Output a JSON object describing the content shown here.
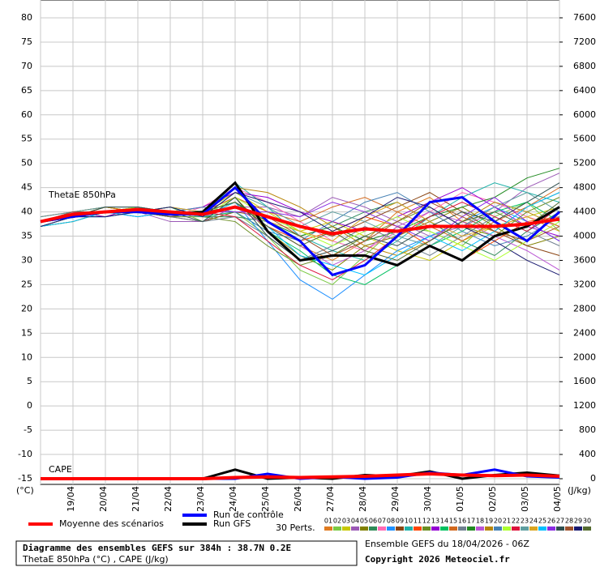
{
  "chart_data": {
    "type": "line",
    "annotations": [
      "ThetaE 850hPa",
      "CAPE"
    ],
    "y_unit": "(°C)",
    "y2_unit": "(J/kg)",
    "perts_label": "30 Perts.",
    "footer": {
      "title": "Diagramme des ensembles GEFS sur 384h : 38.7N 0.2E",
      "subtitle": "ThetaE 850hPa (°C) , CAPE (J/kg)",
      "run": "Ensemble GEFS du 18/04/2026 - 06Z",
      "copyright": "Copyright 2026 Meteociel.fr"
    },
    "categories": [
      null,
      "19/04",
      "20/04",
      "21/04",
      "22/04",
      "23/04",
      "24/04",
      "25/04",
      "26/04",
      "27/04",
      "28/04",
      "29/04",
      "30/04",
      "01/05",
      "02/05",
      "03/05",
      "04/05"
    ],
    "ylim": [
      -15,
      80
    ],
    "yticks": [
      -15,
      -10,
      -5,
      0,
      5,
      10,
      15,
      20,
      25,
      30,
      35,
      40,
      45,
      50,
      55,
      60,
      65,
      70,
      75,
      80
    ],
    "y2lim": [
      0,
      7600
    ],
    "y2ticks": [
      0,
      400,
      800,
      1200,
      1600,
      2000,
      2400,
      2800,
      3200,
      3600,
      4000,
      4400,
      4800,
      5200,
      5600,
      6000,
      6400,
      6800,
      7200,
      7600
    ],
    "grid": true,
    "series": [
      {
        "name": "Moyenne des scénarios",
        "color": "#ff0000",
        "values": [
          38,
          39.5,
          40,
          40.5,
          40,
          39.5,
          41,
          39,
          37,
          35.5,
          36.5,
          36,
          37,
          37,
          37,
          37.5,
          38.5
        ],
        "cape_values": [
          0,
          0,
          0,
          0,
          0,
          0,
          20,
          30,
          20,
          30,
          40,
          60,
          80,
          60,
          50,
          60,
          40
        ]
      },
      {
        "name": "Run de contrôle",
        "color": "#0000ff",
        "values": [
          38,
          39,
          40,
          40,
          39.5,
          39.5,
          45,
          38,
          34,
          27,
          29,
          35,
          42,
          43,
          38,
          34,
          40
        ],
        "cape_values": [
          0,
          0,
          0,
          0,
          0,
          0,
          0,
          80,
          0,
          30,
          0,
          20,
          100,
          60,
          150,
          40,
          20
        ]
      },
      {
        "name": "Run GFS",
        "color": "#000000",
        "values": [
          38,
          39,
          40,
          40,
          39.5,
          40,
          46,
          36,
          30,
          31,
          31,
          29,
          33,
          30,
          35,
          37,
          41
        ],
        "cape_values": [
          0,
          0,
          0,
          0,
          0,
          0,
          150,
          0,
          20,
          0,
          60,
          40,
          120,
          0,
          60,
          100,
          50
        ]
      },
      {
        "name": "01",
        "color": "#e07b20",
        "values": [
          38,
          39,
          40,
          41,
          40,
          39,
          42,
          37,
          33,
          30,
          34,
          40,
          43,
          38,
          36,
          41,
          44
        ]
      },
      {
        "name": "02",
        "color": "#7ac943",
        "values": [
          37,
          39,
          41,
          40,
          41,
          38,
          40,
          35,
          28,
          25,
          31,
          37,
          36,
          33,
          39,
          42,
          36
        ]
      },
      {
        "name": "03",
        "color": "#c8c800",
        "values": [
          38,
          40,
          39,
          41,
          39,
          40,
          44,
          40,
          36,
          38,
          35,
          32,
          30,
          34,
          37,
          39,
          41
        ]
      },
      {
        "name": "04",
        "color": "#9b59b6",
        "values": [
          38,
          39,
          40,
          40,
          38,
          38,
          41,
          41,
          39,
          43,
          41,
          38,
          35,
          37,
          40,
          45,
          48
        ]
      },
      {
        "name": "05",
        "color": "#808000",
        "values": [
          37,
          38,
          40,
          39,
          40,
          40,
          43,
          36,
          31,
          28,
          33,
          35,
          38,
          41,
          37,
          33,
          35
        ]
      },
      {
        "name": "06",
        "color": "#2e8b57",
        "values": [
          38,
          40,
          41,
          40,
          40,
          39,
          39,
          38,
          35,
          37,
          40,
          42,
          38,
          34,
          31,
          36,
          40
        ]
      },
      {
        "name": "07",
        "color": "#ff69b4",
        "values": [
          39,
          40,
          40,
          41,
          39,
          41,
          45,
          42,
          38,
          34,
          32,
          36,
          40,
          44,
          42,
          39,
          37
        ]
      },
      {
        "name": "08",
        "color": "#1e90ff",
        "values": [
          38,
          39,
          39,
          40,
          41,
          40,
          42,
          34,
          26,
          22,
          27,
          32,
          35,
          38,
          41,
          38,
          34
        ]
      },
      {
        "name": "09",
        "color": "#8b4513",
        "values": [
          37,
          39,
          40,
          40,
          39,
          38,
          40,
          39,
          37,
          35,
          38,
          41,
          44,
          40,
          36,
          33,
          31
        ]
      },
      {
        "name": "10",
        "color": "#20b2aa",
        "values": [
          38,
          40,
          40,
          41,
          40,
          39,
          46,
          41,
          35,
          32,
          30,
          34,
          39,
          43,
          46,
          44,
          42
        ]
      },
      {
        "name": "11",
        "color": "#ff4500",
        "values": [
          38,
          39,
          41,
          40,
          40,
          40,
          41,
          37,
          34,
          36,
          39,
          37,
          33,
          30,
          34,
          38,
          39
        ]
      },
      {
        "name": "12",
        "color": "#6b8e23",
        "values": [
          37,
          38,
          40,
          40,
          39,
          39,
          38,
          33,
          29,
          31,
          35,
          38,
          41,
          37,
          35,
          40,
          43
        ]
      },
      {
        "name": "13",
        "color": "#9400d3",
        "values": [
          38,
          40,
          39,
          41,
          40,
          41,
          44,
          43,
          40,
          38,
          36,
          39,
          42,
          45,
          41,
          37,
          35
        ]
      },
      {
        "name": "14",
        "color": "#00c060",
        "values": [
          38,
          39,
          40,
          40,
          41,
          39,
          40,
          36,
          32,
          27,
          25,
          29,
          33,
          36,
          40,
          42,
          38
        ]
      },
      {
        "name": "15",
        "color": "#d2691e",
        "values": [
          39,
          40,
          41,
          40,
          40,
          40,
          43,
          40,
          38,
          41,
          43,
          40,
          37,
          34,
          38,
          41,
          45
        ]
      },
      {
        "name": "16",
        "color": "#708090",
        "values": [
          38,
          39,
          40,
          41,
          39,
          38,
          39,
          35,
          30,
          33,
          37,
          34,
          31,
          35,
          39,
          36,
          33
        ]
      },
      {
        "name": "17",
        "color": "#228b22",
        "values": [
          37,
          39,
          40,
          40,
          40,
          40,
          42,
          38,
          35,
          37,
          34,
          36,
          39,
          41,
          43,
          47,
          49
        ]
      },
      {
        "name": "18",
        "color": "#ba55d3",
        "values": [
          38,
          40,
          40,
          39,
          40,
          39,
          41,
          37,
          33,
          29,
          32,
          37,
          40,
          38,
          35,
          32,
          28
        ]
      },
      {
        "name": "19",
        "color": "#b8860b",
        "values": [
          38,
          39,
          41,
          40,
          39,
          40,
          45,
          44,
          41,
          37,
          33,
          31,
          34,
          38,
          42,
          40,
          37
        ]
      },
      {
        "name": "20",
        "color": "#4682b4",
        "values": [
          37,
          39,
          39,
          40,
          40,
          41,
          40,
          36,
          34,
          38,
          42,
          44,
          40,
          36,
          33,
          35,
          39
        ]
      },
      {
        "name": "21",
        "color": "#adff2f",
        "values": [
          38,
          40,
          40,
          41,
          40,
          39,
          43,
          39,
          36,
          33,
          36,
          39,
          36,
          33,
          30,
          34,
          38
        ]
      },
      {
        "name": "22",
        "color": "#dc143c",
        "values": [
          38,
          39,
          40,
          40,
          39,
          40,
          39,
          34,
          29,
          26,
          30,
          35,
          39,
          42,
          39,
          36,
          41
        ]
      },
      {
        "name": "23",
        "color": "#5f9ea0",
        "values": [
          39,
          40,
          41,
          41,
          40,
          39,
          44,
          41,
          37,
          40,
          38,
          35,
          33,
          37,
          41,
          44,
          40
        ]
      },
      {
        "name": "24",
        "color": "#daa520",
        "values": [
          38,
          39,
          40,
          40,
          41,
          40,
          41,
          38,
          36,
          34,
          39,
          42,
          38,
          35,
          37,
          39,
          36
        ]
      },
      {
        "name": "25",
        "color": "#00bfff",
        "values": [
          37,
          38,
          40,
          39,
          40,
          39,
          42,
          37,
          31,
          29,
          27,
          31,
          35,
          32,
          36,
          41,
          44
        ]
      },
      {
        "name": "26",
        "color": "#8a2be2",
        "values": [
          38,
          40,
          40,
          40,
          39,
          40,
          40,
          40,
          39,
          42,
          40,
          37,
          34,
          39,
          43,
          38,
          34
        ]
      },
      {
        "name": "27",
        "color": "#2f4f4f",
        "values": [
          38,
          39,
          41,
          41,
          40,
          38,
          43,
          35,
          30,
          32,
          35,
          33,
          37,
          40,
          38,
          42,
          46
        ]
      },
      {
        "name": "28",
        "color": "#a0522d",
        "values": [
          38,
          40,
          40,
          40,
          40,
          40,
          41,
          39,
          35,
          31,
          34,
          38,
          42,
          39,
          36,
          34,
          37
        ]
      },
      {
        "name": "29",
        "color": "#191970",
        "values": [
          37,
          39,
          39,
          40,
          41,
          39,
          44,
          42,
          40,
          36,
          39,
          43,
          41,
          37,
          34,
          30,
          27
        ]
      },
      {
        "name": "30",
        "color": "#556b2f",
        "values": [
          38,
          39,
          40,
          40,
          39,
          40,
          42,
          37,
          33,
          36,
          32,
          30,
          34,
          38,
          40,
          37,
          42
        ]
      }
    ]
  }
}
